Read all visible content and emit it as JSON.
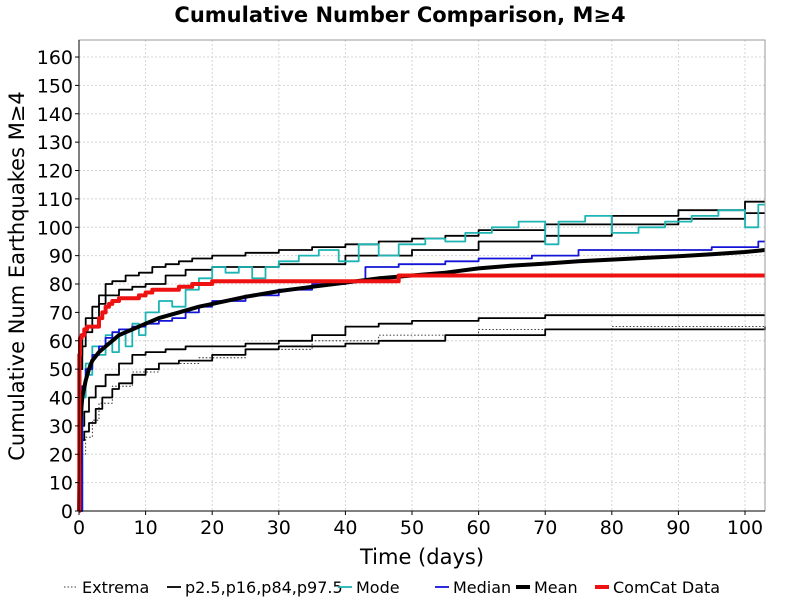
{
  "chart_data": {
    "type": "line",
    "title": "Cumulative Number Comparison, M≥4",
    "xlabel": "Time (days)",
    "ylabel": "Cumulative Num Earthquakes M≥4",
    "xlim": [
      0,
      103
    ],
    "ylim": [
      0,
      166
    ],
    "xticks": [
      0,
      10,
      20,
      30,
      40,
      50,
      60,
      70,
      80,
      90,
      100
    ],
    "yticks": [
      0,
      10,
      20,
      30,
      40,
      50,
      60,
      70,
      80,
      90,
      100,
      110,
      120,
      130,
      140,
      150,
      160
    ],
    "grid": true,
    "legend_position": "bottom",
    "series": [
      {
        "name": "Extrema",
        "color": "#000000",
        "style": "dotted",
        "width": 0.8,
        "step": true,
        "x": [
          0,
          0.5,
          1,
          2,
          3,
          5,
          8,
          12,
          18,
          25,
          35,
          45,
          60,
          80,
          103
        ],
        "y": [
          0,
          20,
          26,
          32,
          38,
          44,
          49,
          52,
          54,
          57,
          60,
          62,
          64,
          65,
          65
        ]
      },
      {
        "name": "p2.5,p16,p84,p97.5",
        "color": "#000000",
        "style": "solid",
        "width": 1.8,
        "step": true,
        "x": [
          0,
          0.3,
          0.8,
          1.5,
          2.5,
          3.5,
          5,
          6,
          8,
          10,
          12,
          15,
          20,
          25,
          30,
          40,
          45,
          55,
          70,
          103
        ],
        "y": [
          0,
          25,
          28,
          31,
          36,
          40,
          43,
          45,
          48,
          50,
          52,
          53,
          55,
          57,
          58,
          59,
          60,
          62,
          64,
          65
        ]
      },
      {
        "series_group": "p2.5,p16,p84,p97.5",
        "color": "#000000",
        "style": "solid",
        "width": 1.8,
        "step": true,
        "x": [
          0,
          0.3,
          0.8,
          1.5,
          2.5,
          4,
          6,
          8,
          10,
          13,
          16,
          20,
          25,
          30,
          35,
          40,
          45,
          50,
          60,
          70,
          103
        ],
        "y": [
          0,
          30,
          35,
          40,
          44,
          48,
          52,
          55,
          56,
          57,
          58,
          58,
          59,
          60,
          62,
          65,
          66,
          67,
          68,
          69,
          69
        ]
      },
      {
        "series_group": "p2.5,p16,p84,p97.5",
        "color": "#000000",
        "style": "solid",
        "width": 1.8,
        "step": true,
        "x": [
          0,
          0.2,
          0.5,
          1,
          2,
          3,
          4,
          6,
          8,
          10,
          13,
          16,
          20,
          25,
          30,
          40,
          50,
          60,
          70,
          80,
          90,
          100,
          103
        ],
        "y": [
          0,
          50,
          58,
          63,
          68,
          73,
          76,
          78,
          79,
          80,
          83,
          85,
          86,
          86,
          87,
          90,
          92,
          95,
          97,
          101,
          103,
          105,
          105
        ]
      },
      {
        "series_group": "p2.5,p16,p84,p97.5",
        "color": "#000000",
        "style": "solid",
        "width": 1.8,
        "step": true,
        "x": [
          0,
          0.2,
          0.5,
          1,
          2,
          3,
          4,
          5,
          7,
          9,
          11,
          13,
          15,
          17,
          20,
          25,
          30,
          35,
          40,
          45,
          50,
          55,
          60,
          70,
          80,
          90,
          100,
          103
        ],
        "y": [
          0,
          55,
          62,
          68,
          72,
          76,
          80,
          81,
          83,
          84,
          86,
          87,
          88,
          89,
          90,
          91,
          92,
          93,
          94,
          95,
          96,
          97,
          99,
          101,
          104,
          106,
          109,
          109
        ]
      },
      {
        "name": "Mode",
        "color": "#1db4b4",
        "style": "solid",
        "width": 1.8,
        "step": true,
        "x": [
          0,
          0.5,
          1,
          1.5,
          2,
          3,
          4,
          5,
          6,
          7,
          8,
          9,
          10,
          12,
          14,
          16,
          18,
          20,
          22,
          24,
          26,
          28,
          30,
          33,
          36,
          39,
          42,
          45,
          48,
          52,
          55,
          58,
          62,
          66,
          70,
          72,
          76,
          80,
          84,
          88,
          92,
          96,
          100,
          102,
          103
        ],
        "y": [
          0,
          40,
          52,
          48,
          58,
          55,
          62,
          56,
          64,
          58,
          66,
          62,
          70,
          74,
          72,
          78,
          82,
          86,
          84,
          86,
          82,
          86,
          88,
          90,
          92,
          88,
          94,
          90,
          94,
          96,
          95,
          98,
          100,
          102,
          94,
          102,
          104,
          98,
          100,
          102,
          104,
          106,
          100,
          108,
          108
        ]
      },
      {
        "name": "Median",
        "color": "#1414d8",
        "style": "solid",
        "width": 1.8,
        "step": true,
        "x": [
          0,
          0.5,
          1,
          2,
          3,
          4,
          5,
          6,
          8,
          10,
          12,
          14,
          16,
          18,
          20,
          25,
          30,
          35,
          40,
          43,
          48,
          55,
          60,
          68,
          75,
          85,
          95,
          102,
          103
        ],
        "y": [
          0,
          44,
          50,
          55,
          58,
          61,
          63,
          64,
          65,
          66,
          67,
          68,
          70,
          72,
          74,
          76,
          78,
          80,
          81,
          86,
          87,
          88,
          89,
          90,
          92,
          92,
          93,
          95,
          95
        ]
      },
      {
        "name": "Mean",
        "color": "#000000",
        "style": "solid",
        "width": 4,
        "step": false,
        "x": [
          0,
          0.2,
          0.5,
          1,
          1.5,
          2,
          3,
          4,
          5,
          6,
          8,
          10,
          12,
          15,
          18,
          20,
          25,
          30,
          35,
          40,
          45,
          50,
          55,
          60,
          65,
          70,
          75,
          80,
          85,
          90,
          95,
          100,
          103
        ],
        "y": [
          0,
          32,
          40,
          46,
          50,
          53,
          56,
          58,
          60,
          62,
          64,
          66,
          68,
          70,
          72,
          73,
          75.5,
          77.5,
          79,
          80.5,
          82,
          83,
          84,
          85.5,
          86.5,
          87.2,
          88,
          88.6,
          89.2,
          89.8,
          90.5,
          91.3,
          92
        ]
      },
      {
        "name": "ComCat Data",
        "color": "#ee1111",
        "style": "solid",
        "width": 4,
        "step": true,
        "x": [
          0,
          0.05,
          0.15,
          0.4,
          0.8,
          1.2,
          2,
          3,
          3.5,
          4,
          4.5,
          5,
          5.5,
          6,
          7,
          8,
          9,
          10,
          11,
          13,
          15,
          17,
          20,
          25,
          30,
          35,
          40,
          42,
          45,
          48,
          55,
          65,
          80,
          103
        ],
        "y": [
          0,
          55,
          61,
          62,
          64,
          65,
          65,
          68,
          70,
          72,
          73,
          74,
          74,
          75,
          75,
          75,
          76,
          77,
          78,
          78,
          79,
          80,
          81,
          81,
          81,
          81,
          81,
          81,
          81,
          83,
          83,
          83,
          83,
          83
        ]
      }
    ]
  }
}
